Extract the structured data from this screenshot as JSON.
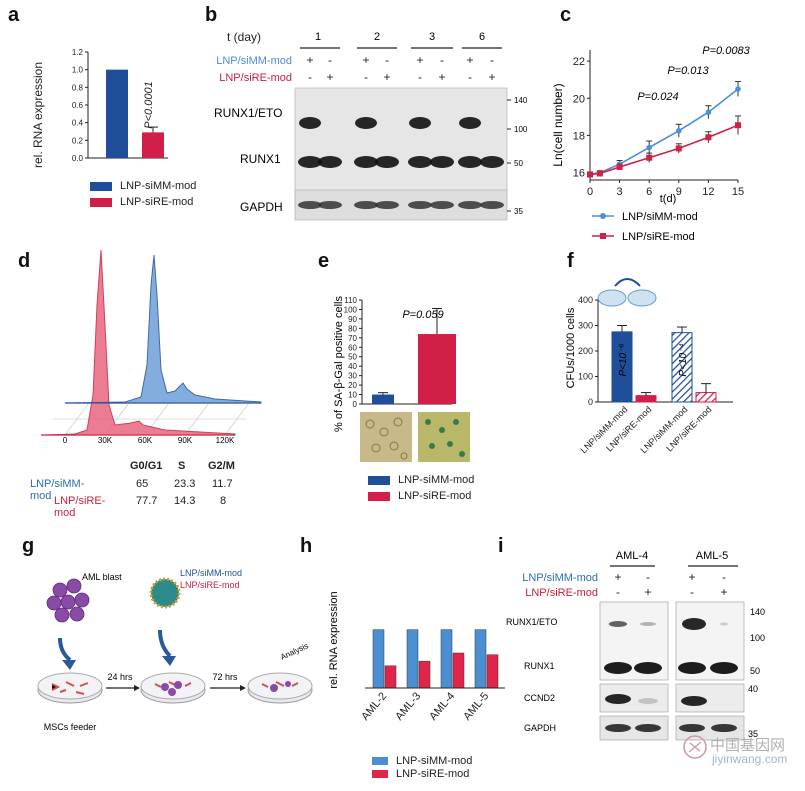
{
  "panel_labels": {
    "a": "a",
    "b": "b",
    "c": "c",
    "d": "d",
    "e": "e",
    "f": "f",
    "g": "g",
    "h": "h",
    "i": "i"
  },
  "colors": {
    "blue": "#1f4e9a",
    "red": "#d21f47",
    "line_blue": "#4a90d9",
    "light_blue": "#4a8fd1",
    "rose": "#e0244a"
  },
  "panel_a": {
    "ylabel": "rel. RNA expression",
    "pvalue": "P<0.0001",
    "legend": [
      "LNP-siMM-mod",
      "LNP-siRE-mod"
    ],
    "chart_data": {
      "type": "bar",
      "categories": [
        "LNP-siMM-mod",
        "LNP-siRE-mod"
      ],
      "values": [
        1.0,
        0.29
      ],
      "errors": [
        0,
        0.06
      ],
      "ylim": [
        0,
        1.2
      ],
      "yticks": [
        "0.0",
        "0.2",
        "0.4",
        "0.6",
        "0.8",
        "1.0",
        "1.2"
      ]
    }
  },
  "panel_b": {
    "time_label": "t (day)",
    "days": [
      "1",
      "2",
      "3",
      "6"
    ],
    "row1_label": "LNP/siMM-mod",
    "row2_label": "LNP/siRE-mod",
    "row1_marks": [
      "+",
      "-",
      "+",
      "-",
      "+",
      "-",
      "+",
      "-"
    ],
    "row2_marks": [
      "-",
      "+",
      "-",
      "+",
      "-",
      "+",
      "-",
      "+"
    ],
    "blot_labels": [
      "RUNX1/ETO",
      "RUNX1",
      "GAPDH"
    ],
    "markers": [
      "140",
      "100",
      "50",
      "35"
    ]
  },
  "panel_c": {
    "ylabel": "Ln(cell number)",
    "xlabel": "t(d)",
    "pvalues": [
      "P=0.024",
      "P=0.013",
      "P=0.0083"
    ],
    "legend": [
      "LNP/siMM-mod",
      "LNP/siRE-mod"
    ],
    "chart_data": {
      "type": "line",
      "x": [
        0,
        1,
        3,
        6,
        9,
        12,
        15
      ],
      "series": [
        {
          "name": "LNP/siMM-mod",
          "values": [
            15.9,
            16.0,
            16.45,
            17.35,
            18.25,
            19.25,
            20.5
          ],
          "errors": [
            0.1,
            0.1,
            0.2,
            0.35,
            0.35,
            0.35,
            0.4
          ]
        },
        {
          "name": "LNP/siRE-mod",
          "values": [
            15.9,
            15.95,
            16.3,
            16.8,
            17.3,
            17.9,
            18.55
          ],
          "errors": [
            0.1,
            0.1,
            0.15,
            0.25,
            0.25,
            0.3,
            0.5
          ]
        }
      ],
      "xticks": [
        "0",
        "3",
        "6",
        "9",
        "12",
        "15"
      ],
      "yticks": [
        "16",
        "18",
        "20",
        "22"
      ],
      "xlim": [
        0,
        15
      ],
      "ylim": [
        15.6,
        22.6
      ]
    }
  },
  "panel_d": {
    "xticks": [
      "0",
      "30K",
      "60K",
      "90K",
      "120K"
    ],
    "table_header": [
      "",
      "G0/G1",
      "S",
      "G2/M"
    ],
    "rows": [
      {
        "label": "LNP/siMM-mod",
        "values": [
          "65",
          "23.3",
          "11.7"
        ]
      },
      {
        "label": "LNP/siRE-mod",
        "values": [
          "77.7",
          "14.3",
          "8"
        ]
      }
    ]
  },
  "panel_e": {
    "ylabel": "% of SA-β-Gal positive cells",
    "pvalue": "P=0.059",
    "legend": [
      "LNP-siMM-mod",
      "LNP-siRE-mod"
    ],
    "chart_data": {
      "type": "bar",
      "categories": [
        "LNP-siMM-mod",
        "LNP-siRE-mod"
      ],
      "values": [
        10,
        74
      ],
      "errors": [
        2,
        27
      ],
      "ylim": [
        0,
        110
      ],
      "yticks": [
        "0",
        "10",
        "20",
        "30",
        "40",
        "50",
        "60",
        "70",
        "80",
        "90",
        "100",
        "110"
      ]
    }
  },
  "panel_f": {
    "ylabel": "CFUs/1000 cells",
    "pvalues": [
      "P<10⁻⁶",
      "P<10⁻⁴"
    ],
    "chart_data": {
      "type": "bar",
      "categories": [
        "LNP/siMM-mod",
        "LNP/siRE-mod",
        "LNP/siMM-mod",
        "LNP/siRE-mod"
      ],
      "values": [
        275,
        25,
        272,
        37
      ],
      "errors": [
        25,
        12,
        22,
        35
      ],
      "ylim": [
        0,
        400
      ],
      "yticks": [
        "0",
        "100",
        "200",
        "300",
        "400"
      ]
    }
  },
  "panel_g": {
    "aml_blast": "AML blast",
    "lnp1": "LNP/siMM-mod",
    "lnp2": "LNP/siRE-mod",
    "t1": "24 hrs",
    "t2": "72 hrs",
    "analysis": "Analysis",
    "feeder": "MSCs feeder"
  },
  "panel_h": {
    "ylabel": "rel. RNA expression",
    "legend": [
      "LNP-siMM-mod",
      "LNP-siRE-mod"
    ],
    "chart_data": {
      "type": "bar",
      "categories": [
        "AML-2",
        "AML-3",
        "AML-4",
        "AML-5"
      ],
      "series": [
        {
          "name": "LNP-siMM-mod",
          "values": [
            1.0,
            1.0,
            1.0,
            1.0
          ]
        },
        {
          "name": "LNP-siRE-mod",
          "values": [
            0.38,
            0.46,
            0.6,
            0.57
          ]
        }
      ],
      "ylim": [
        0,
        1.2
      ]
    }
  },
  "panel_i": {
    "samples": [
      "AML-4",
      "AML-5"
    ],
    "row1_label": "LNP/siMM-mod",
    "row2_label": "LNP/siRE-mod",
    "row1_marks": [
      "+",
      "-",
      "+",
      "-"
    ],
    "row2_marks": [
      "-",
      "+",
      "-",
      "+"
    ],
    "blot_labels": [
      "RUNX1/ETO",
      "RUNX1",
      "CCND2",
      "GAPDH"
    ],
    "markers": [
      "140",
      "100",
      "50",
      "40",
      "35"
    ]
  },
  "watermark": {
    "cn": "中国基因网",
    "url": "jiyinwang.com"
  }
}
